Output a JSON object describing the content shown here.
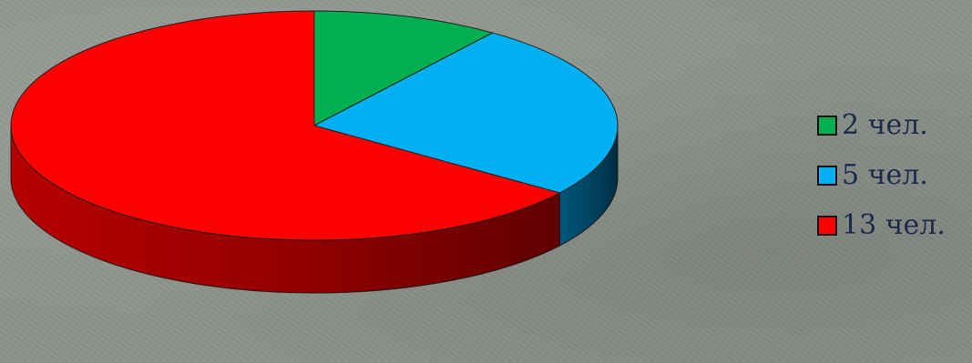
{
  "chart_data": {
    "type": "pie",
    "title": "",
    "categories": [
      "2 чел.",
      "5 чел.",
      "13 чел."
    ],
    "values": [
      2,
      5,
      13
    ],
    "colors": [
      "#00b050",
      "#00b0f0",
      "#ff0000"
    ],
    "side_colors": [
      "#007a38",
      "#005a80",
      "#c00000"
    ],
    "legend_position": "right",
    "style": "3d"
  }
}
